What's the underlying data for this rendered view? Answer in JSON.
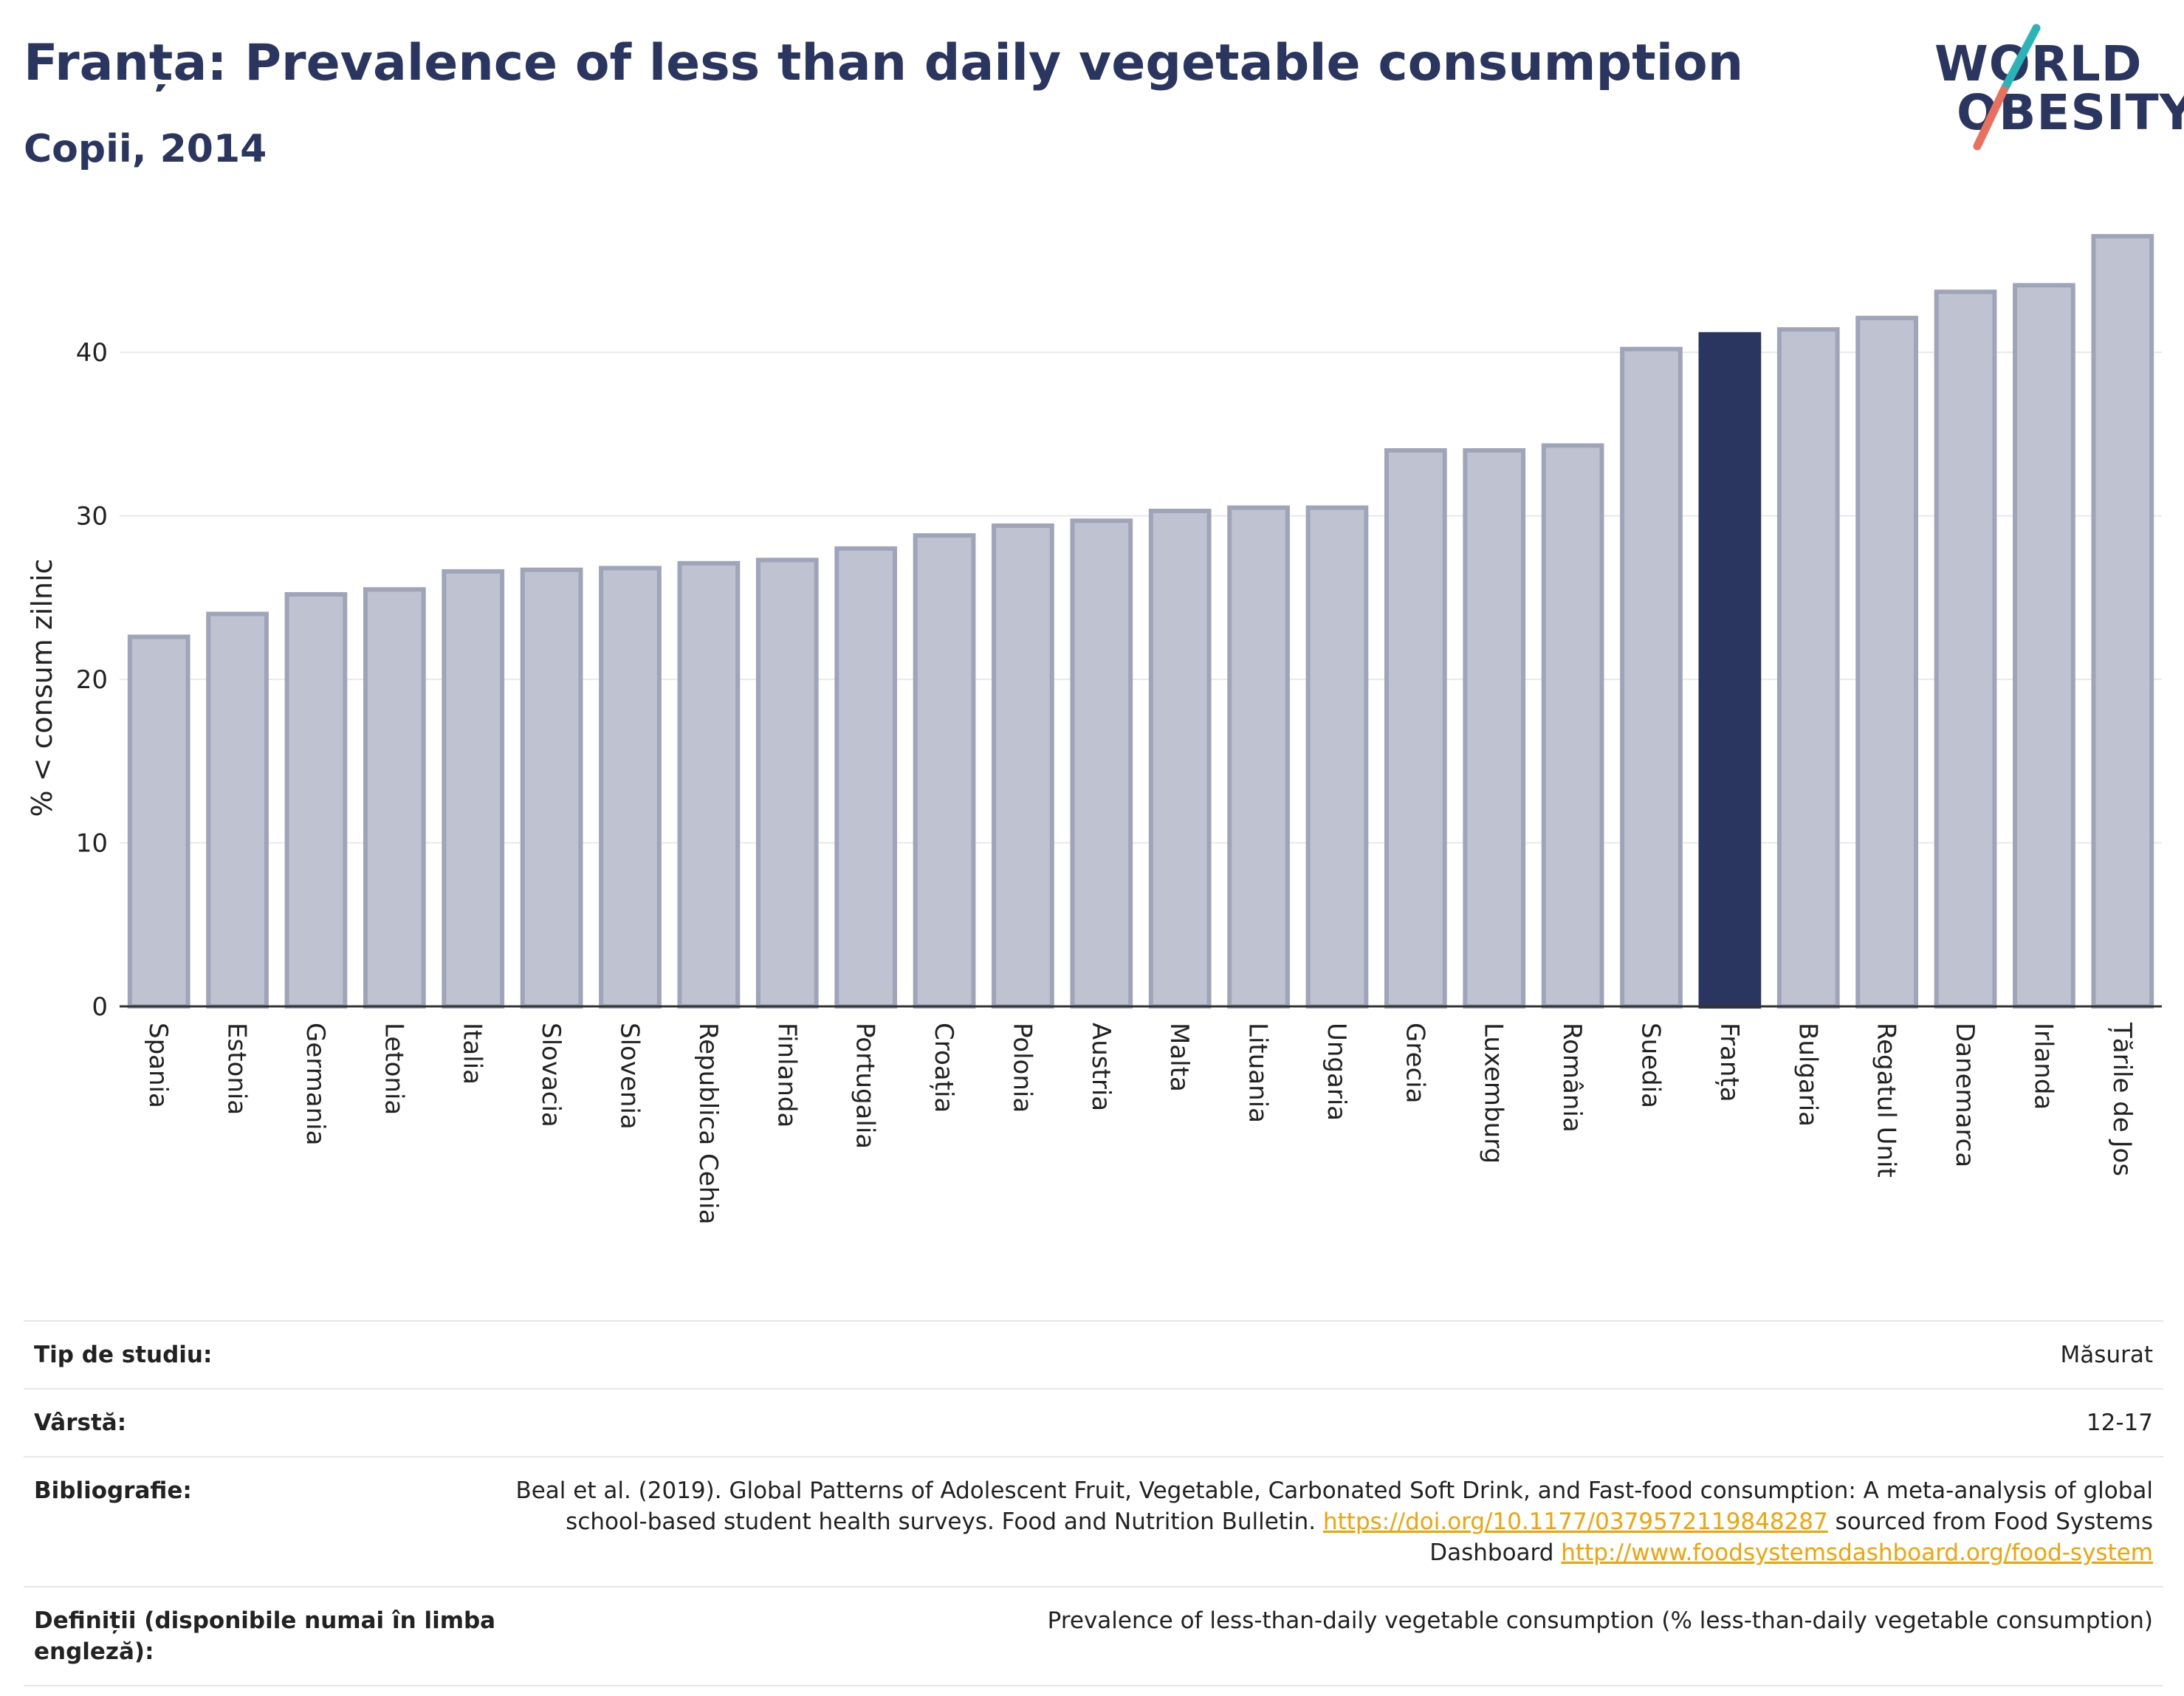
{
  "header": {
    "title": "Franța: Prevalence of less than daily vegetable consumption",
    "subtitle": "Copii, 2014"
  },
  "logo": {
    "line1": "WORLD",
    "line2": "OBESITY"
  },
  "chart_data": {
    "type": "bar",
    "ylabel": "% < consum zilnic",
    "ylim": [
      0,
      48
    ],
    "yticks": [
      0,
      10,
      20,
      30,
      40
    ],
    "grid": true,
    "highlight": "Franța",
    "categories": [
      "Spania",
      "Estonia",
      "Germania",
      "Letonia",
      "Italia",
      "Slovacia",
      "Slovenia",
      "Republica Cehia",
      "Finlanda",
      "Portugalia",
      "Croația",
      "Polonia",
      "Austria",
      "Malta",
      "Lituania",
      "Ungaria",
      "Grecia",
      "Luxemburg",
      "România",
      "Suedia",
      "Franța",
      "Bulgaria",
      "Regatul Unit",
      "Danemarca",
      "Irlanda",
      "Țările de Jos"
    ],
    "values": [
      22.6,
      24.0,
      25.2,
      25.5,
      26.6,
      26.7,
      26.8,
      27.1,
      27.3,
      28.0,
      28.8,
      29.4,
      29.7,
      30.3,
      30.5,
      30.5,
      34.0,
      34.0,
      34.3,
      40.2,
      41.1,
      41.4,
      42.1,
      43.7,
      44.1,
      47.1
    ]
  },
  "colors": {
    "bar": "#bfc2d0",
    "bar_border": "#9fa4b9",
    "highlight": "#2a3560",
    "grid": "#e8e8ee"
  },
  "meta": {
    "study_type_label": "Tip de studiu:",
    "study_type_value": "Măsurat",
    "age_label": "Vârstă:",
    "age_value": "12-17",
    "bib_label": "Bibliografie:",
    "bib_text1": "Beal et al. (2019). Global Patterns of Adolescent Fruit, Vegetable, Carbonated Soft Drink, and Fast-food consumption: A meta-analysis of global school-based student health surveys. Food and Nutrition Bulletin. ",
    "bib_link1": "https://doi.org/10.1177/0379572119848287",
    "bib_text2": " sourced from Food Systems Dashboard ",
    "bib_link2": "http://www.foodsystemsdashboard.org/food-system",
    "def_label": "Definiții (disponibile numai în limba engleză):",
    "def_value": "Prevalence of less-than-daily vegetable consumption (% less-than-daily vegetable consumption)"
  }
}
